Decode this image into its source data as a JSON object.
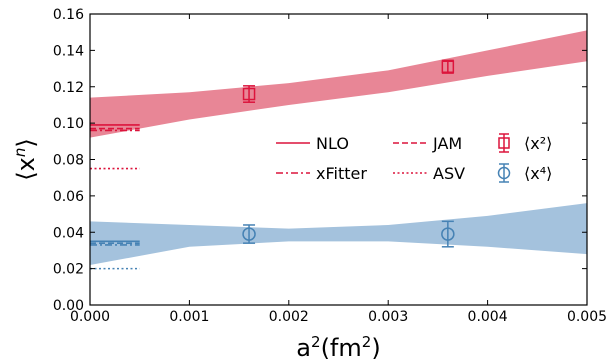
{
  "chart_data": {
    "type": "scatter",
    "title": "",
    "xlabel_main": "a",
    "xlabel_sup": "2",
    "xlabel_unit": "(fm",
    "xlabel_unit_sup": "2",
    "xlabel_close": ")",
    "ylabel": "⟨x",
    "ylabel_sup": "n",
    "ylabel_close": "⟩",
    "xlim": [
      0.0,
      0.005
    ],
    "ylim": [
      0.0,
      0.16
    ],
    "xticks": [
      "0.000",
      "0.001",
      "0.002",
      "0.003",
      "0.004",
      "0.005"
    ],
    "yticks": [
      "0.00",
      "0.02",
      "0.04",
      "0.06",
      "0.08",
      "0.10",
      "0.12",
      "0.14",
      "0.16"
    ],
    "grid": false,
    "legend_position": "center-right",
    "colors": {
      "x2": "#dc143c",
      "x2_band": "#e88696",
      "x4": "#4682b4",
      "x4_band": "#a4c2dd"
    },
    "bands": [
      {
        "series": "x2",
        "x": [
          0.0,
          0.001,
          0.002,
          0.003,
          0.004,
          0.005
        ],
        "upper": [
          0.114,
          0.117,
          0.122,
          0.129,
          0.14,
          0.151
        ],
        "lower": [
          0.092,
          0.102,
          0.11,
          0.117,
          0.126,
          0.134
        ]
      },
      {
        "series": "x4",
        "x": [
          0.0,
          0.001,
          0.002,
          0.003,
          0.004,
          0.005
        ],
        "upper": [
          0.046,
          0.044,
          0.042,
          0.044,
          0.049,
          0.056
        ],
        "lower": [
          0.022,
          0.032,
          0.035,
          0.035,
          0.032,
          0.028
        ]
      }
    ],
    "points": [
      {
        "series": "x2",
        "x": 0.0016,
        "y": 0.116,
        "err": 0.0045
      },
      {
        "series": "x2",
        "x": 0.0036,
        "y": 0.131,
        "err": 0.0035
      },
      {
        "series": "x4",
        "x": 0.0016,
        "y": 0.039,
        "err": 0.005
      },
      {
        "series": "x4",
        "x": 0.0036,
        "y": 0.039,
        "err": 0.007
      }
    ],
    "reference_lines": [
      {
        "name": "NLO",
        "series": "x2",
        "y": 0.099,
        "style": "solid"
      },
      {
        "name": "xFitter",
        "series": "x2",
        "y": 0.096,
        "style": "dashdot"
      },
      {
        "name": "JAM",
        "series": "x2",
        "y": 0.097,
        "style": "dashed"
      },
      {
        "name": "ASV",
        "series": "x2",
        "y": 0.075,
        "style": "dotted"
      },
      {
        "name": "NLO",
        "series": "x4",
        "y": 0.035,
        "style": "solid"
      },
      {
        "name": "xFitter",
        "series": "x4",
        "y": 0.033,
        "style": "dashdot"
      },
      {
        "name": "JAM",
        "series": "x4",
        "y": 0.034,
        "style": "dashed"
      },
      {
        "name": "ASV",
        "series": "x4",
        "y": 0.02,
        "style": "dotted"
      }
    ],
    "reference_x_range": [
      0.0,
      0.0005
    ],
    "legend": [
      {
        "label": "NLO",
        "style": "solid",
        "kind": "line"
      },
      {
        "label": "JAM",
        "style": "dashed",
        "kind": "line"
      },
      {
        "label": "⟨x²⟩",
        "kind": "marker",
        "series": "x2"
      },
      {
        "label": "xFitter",
        "style": "dashdot",
        "kind": "line"
      },
      {
        "label": "ASV",
        "style": "dotted",
        "kind": "line"
      },
      {
        "label": "⟨x⁴⟩",
        "kind": "marker",
        "series": "x4"
      }
    ]
  }
}
